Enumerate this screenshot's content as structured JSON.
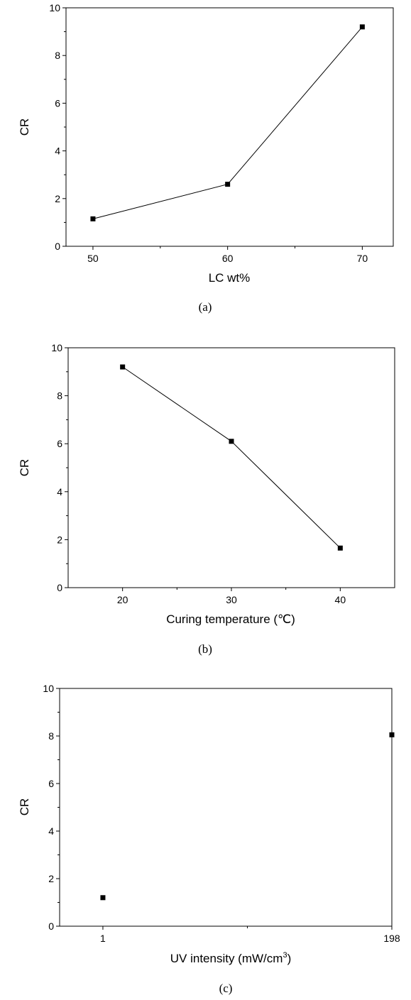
{
  "chart_data": [
    {
      "type": "line",
      "caption": "(a)",
      "xlabel": "LC wt%",
      "ylabel": "CR",
      "xlim": [
        48,
        72.3
      ],
      "ylim": [
        0,
        10
      ],
      "xticks": [
        "50",
        "60",
        "70"
      ],
      "xtick_values": [
        50,
        60,
        70
      ],
      "yticks": [
        "0",
        "2",
        "4",
        "6",
        "8",
        "10"
      ],
      "ytick_values": [
        0,
        2,
        4,
        6,
        8,
        10
      ],
      "series": [
        {
          "x": [
            50,
            60,
            70
          ],
          "y": [
            1.15,
            2.6,
            9.2
          ],
          "marker": "square",
          "line": true
        }
      ]
    },
    {
      "type": "line",
      "caption": "(b)",
      "xlabel": "Curing temperature (℃)",
      "ylabel": "CR",
      "xlim": [
        15,
        45
      ],
      "ylim": [
        0,
        10
      ],
      "xticks": [
        "20",
        "30",
        "40"
      ],
      "xtick_values": [
        20,
        30,
        40
      ],
      "yticks": [
        "0",
        "2",
        "4",
        "6",
        "8",
        "10"
      ],
      "ytick_values": [
        0,
        2,
        4,
        6,
        8,
        10
      ],
      "series": [
        {
          "x": [
            20,
            30,
            40
          ],
          "y": [
            9.2,
            6.1,
            1.65
          ],
          "marker": "square",
          "line": true
        }
      ]
    },
    {
      "type": "scatter",
      "caption": "(c)",
      "xlabel": "UV intensity (mW/cm",
      "xlabel_sup": "3",
      "xlabel_suffix": ")",
      "ylabel": "CR",
      "xlim": [
        -28.5,
        198
      ],
      "ylim": [
        0,
        10
      ],
      "xticks": [
        "1",
        "198"
      ],
      "xtick_values": [
        1,
        198
      ],
      "yticks": [
        "0",
        "2",
        "4",
        "6",
        "8",
        "10"
      ],
      "ytick_values": [
        0,
        2,
        4,
        6,
        8,
        10
      ],
      "series": [
        {
          "x": [
            1,
            198
          ],
          "y": [
            1.2,
            8.05
          ],
          "marker": "square",
          "line": false
        }
      ]
    }
  ]
}
